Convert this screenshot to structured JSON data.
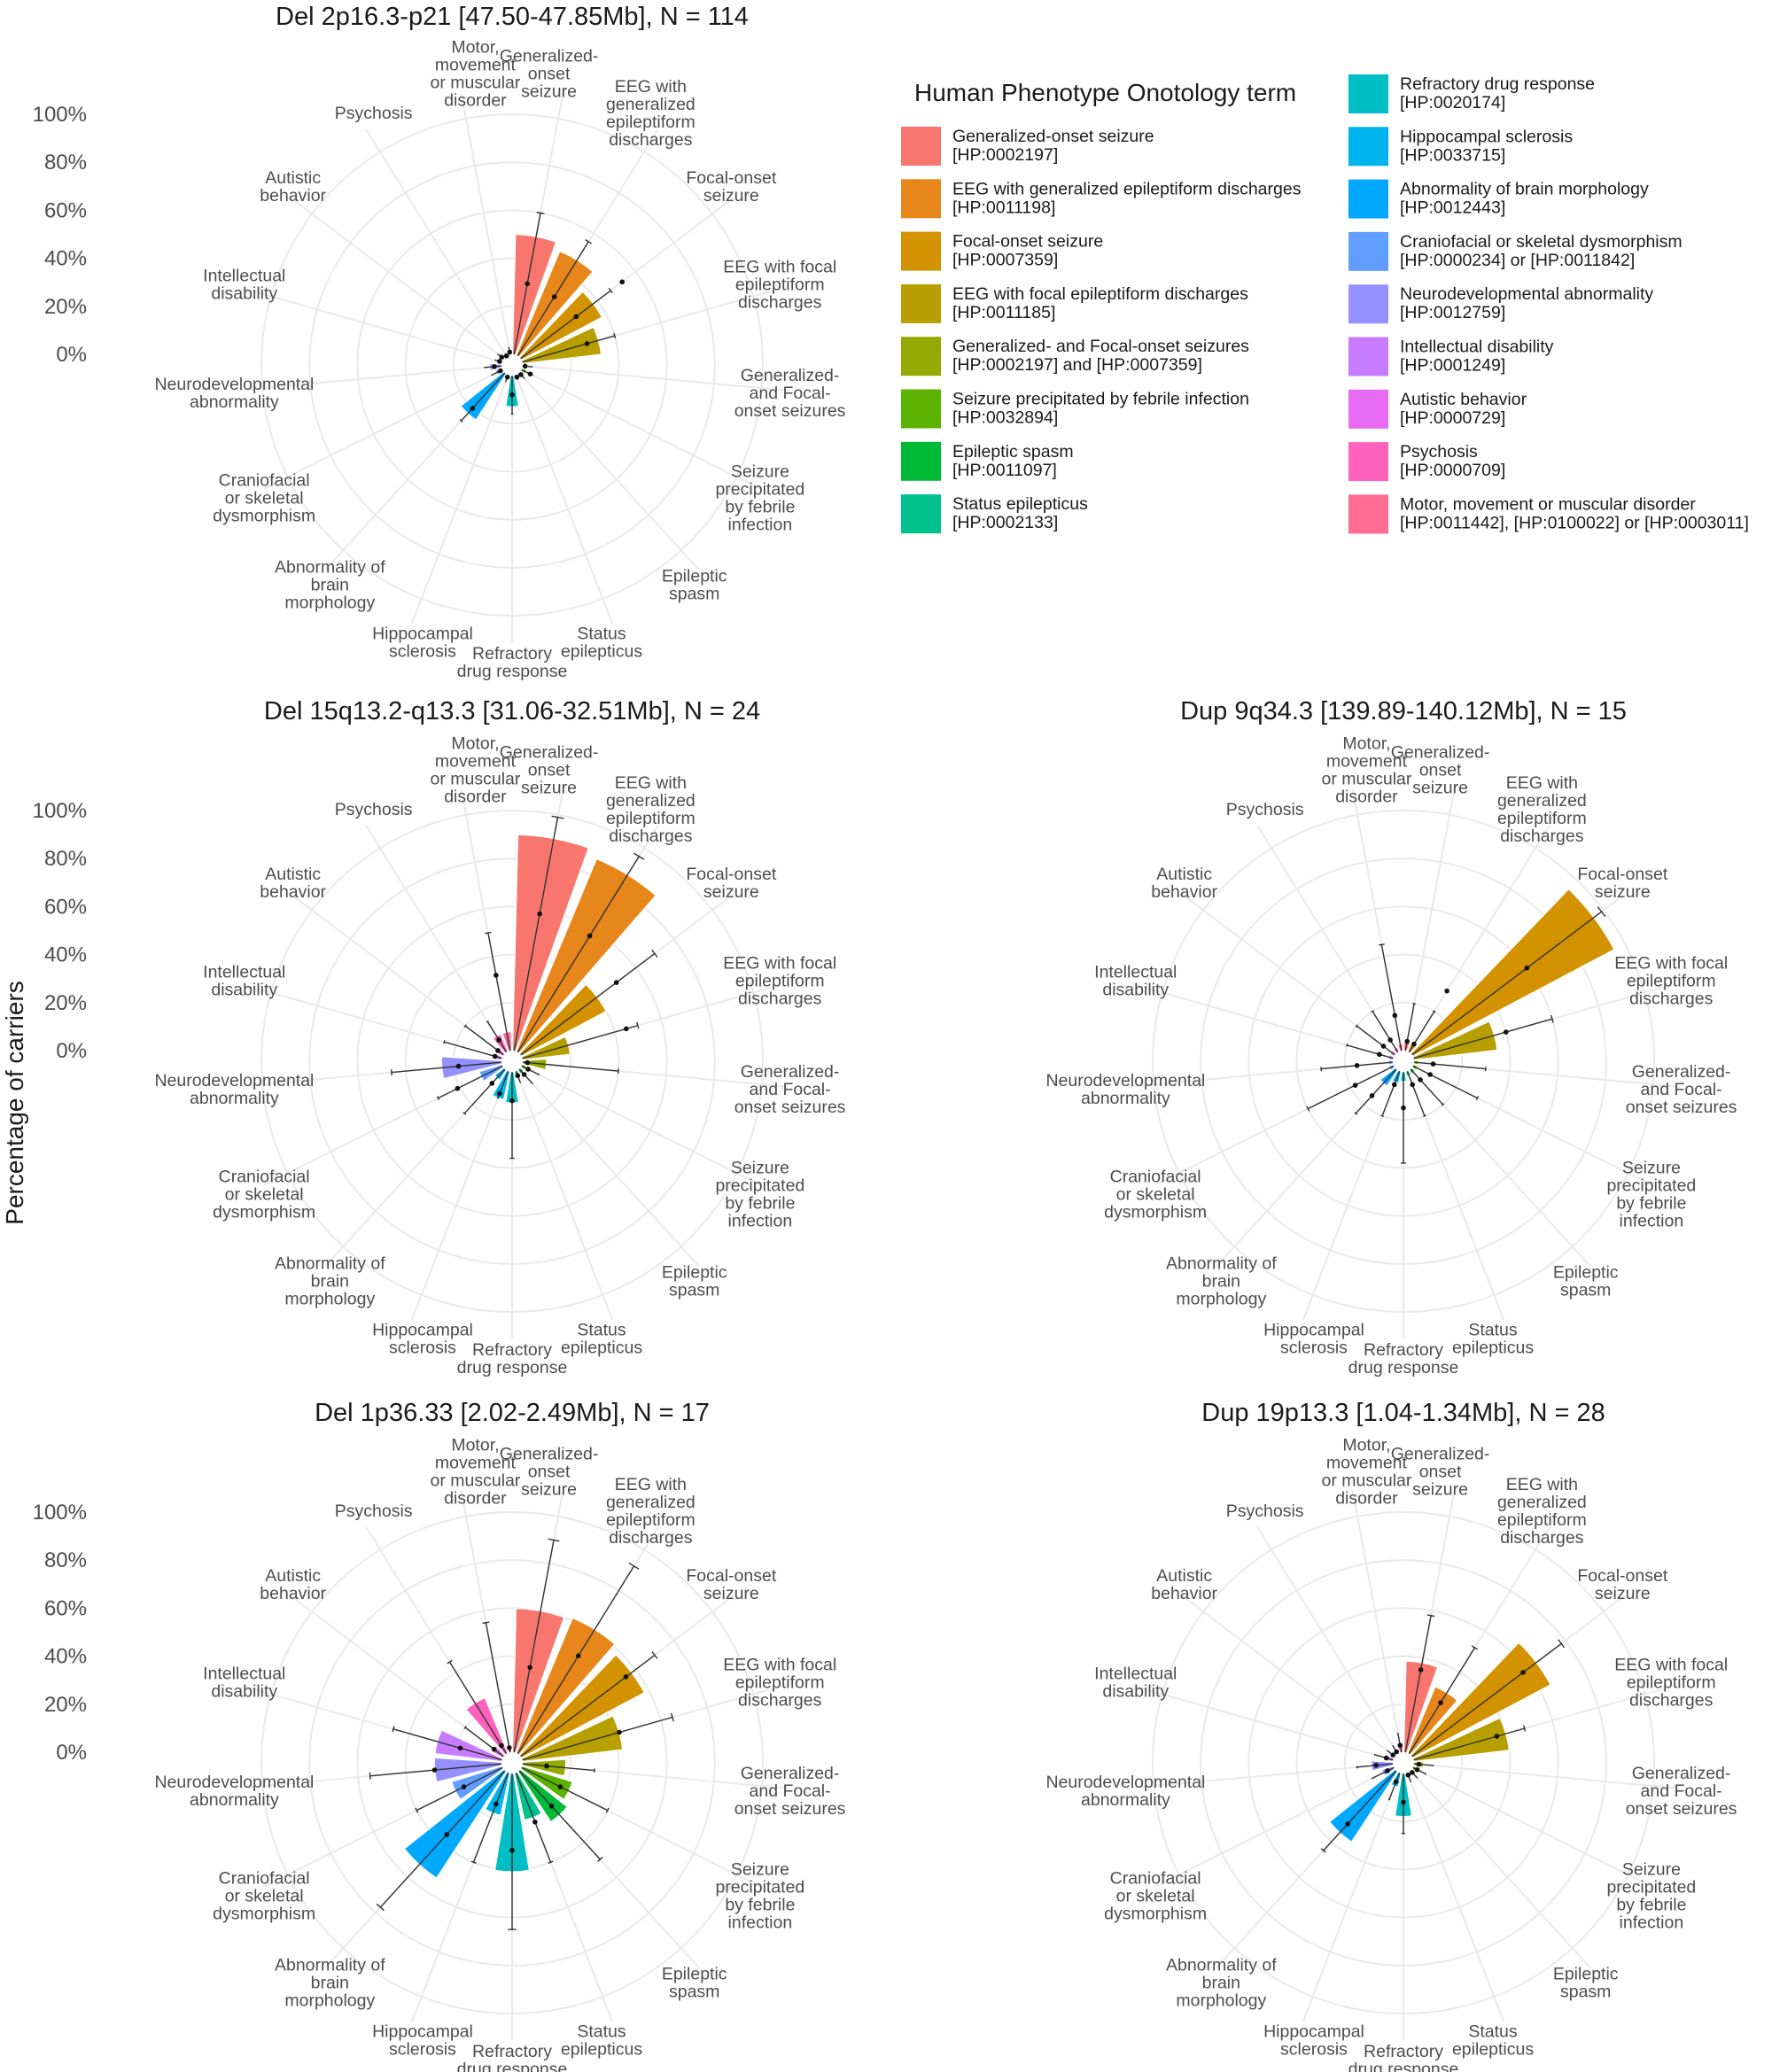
{
  "ylabel": "Percentage of carriers",
  "y_ticks": [
    "0%",
    "20%",
    "40%",
    "60%",
    "80%",
    "100%"
  ],
  "legend": {
    "title": "Human Phenotype Onotology term",
    "items": [
      {
        "name": "Generalized-onset seizure",
        "code": "[HP:0002197]",
        "color": "#F8766D"
      },
      {
        "name": "EEG with generalized epileptiform discharges",
        "code": "[HP:0011198]",
        "color": "#E7861B"
      },
      {
        "name": "Focal-onset seizure",
        "code": "[HP:0007359]",
        "color": "#D39200"
      },
      {
        "name": "EEG with focal epileptiform discharges",
        "code": "[HP:0011185]",
        "color": "#B79F00"
      },
      {
        "name": "Generalized- and Focal-onset seizures",
        "code": "[HP:0002197] and [HP:0007359]",
        "color": "#93AA00"
      },
      {
        "name": "Seizure precipitated by febrile infection",
        "code": "[HP:0032894]",
        "color": "#5BB300"
      },
      {
        "name": "Epileptic spasm",
        "code": "[HP:0011097]",
        "color": "#00BA38"
      },
      {
        "name": "Status epilepticus",
        "code": "[HP:0002133]",
        "color": "#00C08B"
      },
      {
        "name": "Refractory drug response",
        "code": "[HP:0020174]",
        "color": "#00BFC4"
      },
      {
        "name": "Hippocampal sclerosis",
        "code": "[HP:0033715]",
        "color": "#00B4F0"
      },
      {
        "name": "Abnormality of brain morphology",
        "code": "[HP:0012443]",
        "color": "#00A9FF"
      },
      {
        "name": "Craniofacial or skeletal dysmorphism",
        "code": "[HP:0000234] or [HP:0011842]",
        "color": "#619CFF"
      },
      {
        "name": "Neurodevelopmental abnormality",
        "code": "[HP:0012759]",
        "color": "#9590FF"
      },
      {
        "name": "Intellectual disability",
        "code": "[HP:0001249]",
        "color": "#C77CFF"
      },
      {
        "name": "Autistic behavior",
        "code": "[HP:0000729]",
        "color": "#E76BF3"
      },
      {
        "name": "Psychosis",
        "code": "[HP:0000709]",
        "color": "#FF62BC"
      },
      {
        "name": "Motor, movement or muscular disorder",
        "code": "[HP:0011442], [HP:0100022] or [HP:0003011]",
        "color": "#FF6C91"
      }
    ]
  },
  "category_labels": [
    [
      "Generalized-",
      "onset",
      "seizure"
    ],
    [
      "EEG with",
      "generalized",
      "epileptiform",
      "discharges"
    ],
    [
      "Focal-onset",
      "seizure"
    ],
    [
      "EEG with focal",
      "epileptiform",
      "discharges"
    ],
    [
      "Generalized-",
      "and Focal-",
      "onset seizures"
    ],
    [
      "Seizure",
      "precipitated",
      "by febrile",
      "infection"
    ],
    [
      "Epileptic",
      "spasm"
    ],
    [
      "Status",
      "epilepticus"
    ],
    [
      "Refractory",
      "drug response"
    ],
    [
      "Hippocampal",
      "sclerosis"
    ],
    [
      "Abnormality of",
      "brain",
      "morphology"
    ],
    [
      "Craniofacial",
      "or skeletal",
      "dysmorphism"
    ],
    [
      "Neurodevelopmental",
      "abnormality"
    ],
    [
      "Intellectual",
      "disability"
    ],
    [
      "Autistic",
      "behavior"
    ],
    [
      "Psychosis"
    ],
    [
      "Motor,",
      "movement",
      "or muscular",
      "disorder"
    ]
  ],
  "chart_data": [
    {
      "type": "bar",
      "polar": true,
      "title": "Del 2p16.3-p21 [47.50-47.85Mb], N = 114",
      "ylim": [
        0,
        100
      ],
      "values": [
        50,
        47,
        38,
        33,
        2,
        2,
        2,
        1,
        13,
        2,
        23,
        3,
        5,
        2,
        2,
        0,
        2
      ],
      "point_estimate": [
        30,
        29,
        29,
        28,
        1,
        4,
        1,
        1,
        8,
        1,
        20,
        1,
        3,
        1,
        1,
        0,
        1
      ],
      "ci_upper": [
        60,
        56,
        47,
        40,
        4,
        5,
        3,
        2,
        16,
        3,
        27,
        5,
        7,
        3,
        3,
        1,
        3
      ],
      "point_extra": [
        null,
        null,
        53,
        null,
        null,
        null,
        null,
        null,
        null,
        null,
        null,
        null,
        null,
        null,
        null,
        null,
        null
      ]
    },
    {
      "type": "bar",
      "polar": true,
      "title": "Del 15q13.2-q13.3 [31.06-32.51Mb], N = 24",
      "ylim": [
        0,
        100
      ],
      "values": [
        90,
        87,
        40,
        20,
        10,
        2,
        2,
        2,
        13,
        12,
        5,
        10,
        25,
        4,
        4,
        8,
        8
      ],
      "point_estimate": [
        58,
        57,
        50,
        45,
        2,
        3,
        3,
        2,
        12,
        10,
        8,
        21,
        18,
        3,
        3,
        6,
        32
      ],
      "ci_upper": [
        99,
        96,
        70,
        50,
        40,
        8,
        8,
        5,
        36,
        12,
        25,
        30,
        46,
        25,
        20,
        15,
        50
      ],
      "point_extra": [
        null,
        null,
        null,
        null,
        null,
        null,
        null,
        null,
        null,
        null,
        null,
        null,
        null,
        null,
        null,
        null,
        null
      ]
    },
    {
      "type": "bar",
      "polar": true,
      "title": "Dup 9q34.3 [139.89-140.12Mb], N = 15",
      "ylim": [
        0,
        100
      ],
      "values": [
        4,
        4,
        95,
        35,
        2,
        2,
        2,
        2,
        4,
        5,
        8,
        2,
        2,
        2,
        2,
        2,
        3
      ],
      "point_estimate": [
        4,
        4,
        60,
        40,
        8,
        8,
        6,
        6,
        15,
        6,
        15,
        18,
        15,
        6,
        6,
        6,
        15
      ],
      "ci_upper": [
        20,
        20,
        99,
        60,
        30,
        30,
        20,
        20,
        38,
        20,
        25,
        40,
        30,
        20,
        20,
        20,
        45
      ],
      "point_extra": [
        null,
        30,
        null,
        null,
        null,
        null,
        null,
        null,
        null,
        null,
        null,
        null,
        null,
        null,
        null,
        null,
        null
      ]
    },
    {
      "type": "bar",
      "polar": true,
      "title": "Del 1p36.33 [2.02-2.49Mb], N = 17",
      "ylim": [
        0,
        100
      ],
      "values": [
        60,
        61,
        58,
        42,
        18,
        22,
        25,
        20,
        41,
        18,
        53,
        22,
        28,
        28,
        5,
        25,
        2
      ],
      "point_estimate": [
        36,
        48,
        55,
        42,
        10,
        18,
        20,
        22,
        32,
        14,
        36,
        18,
        28,
        18,
        5,
        4,
        2
      ],
      "ci_upper": [
        90,
        92,
        70,
        65,
        30,
        40,
        50,
        40,
        65,
        40,
        77,
        40,
        55,
        47,
        20,
        45,
        55
      ],
      "point_extra": [
        null,
        null,
        null,
        null,
        null,
        null,
        null,
        null,
        null,
        null,
        null,
        null,
        null,
        null,
        null,
        null,
        null
      ]
    },
    {
      "type": "bar",
      "polar": true,
      "title": "Dup 19p13.3 [1.04-1.34Mb], N = 28",
      "ylim": [
        0,
        100
      ],
      "values": [
        38,
        30,
        65,
        40,
        4,
        3,
        2,
        2,
        18,
        6,
        35,
        5,
        9,
        4,
        2,
        2,
        4
      ],
      "point_estimate": [
        35,
        25,
        58,
        36,
        2,
        2,
        1,
        1,
        12,
        4,
        30,
        3,
        7,
        3,
        1,
        1,
        3
      ],
      "ci_upper": [
        58,
        52,
        78,
        48,
        8,
        6,
        4,
        4,
        25,
        12,
        45,
        10,
        15,
        8,
        4,
        4,
        8
      ],
      "point_extra": [
        null,
        null,
        null,
        null,
        null,
        null,
        null,
        null,
        null,
        null,
        null,
        null,
        null,
        null,
        null,
        null,
        null
      ]
    }
  ]
}
